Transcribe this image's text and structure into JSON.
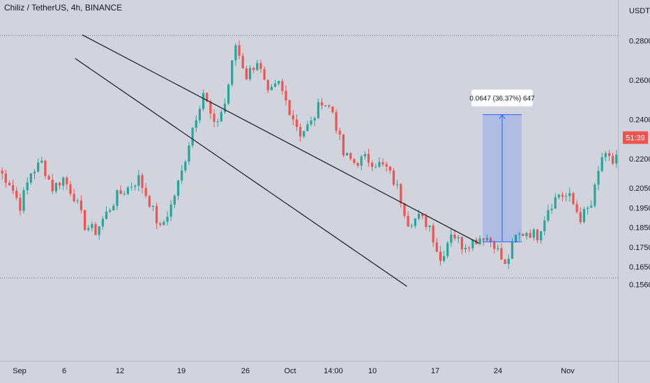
{
  "chart": {
    "title": "Chiliz / TetherUS, 4h, BINANCE",
    "price_unit": "USDT",
    "current_price_label": "51:39",
    "colors": {
      "background": "#d1d4dc",
      "up": "#26a69a",
      "down": "#ef5350",
      "trendline": "#131722",
      "measure_fill": "#2962ff",
      "price_badge": "#ef5350"
    }
  },
  "chart_data": {
    "type": "candlestick",
    "title": "Chiliz / TetherUS, 4h, BINANCE",
    "x_ticks": [
      "Sep",
      "6",
      "12",
      "19",
      "26",
      "Oct",
      "14:00",
      "10",
      "17",
      "24",
      "Nov"
    ],
    "y_ticks": [
      0.28,
      0.26,
      0.24,
      0.22,
      0.205,
      0.195,
      0.185,
      0.175,
      0.165,
      0.156
    ],
    "y_tick_labels": [
      "0.2800",
      "0.2600",
      "0.2400",
      "0.2200",
      "0.2050",
      "0.1950",
      "0.1850",
      "0.1750",
      "0.1650",
      "0.1560"
    ],
    "ylim": [
      0.152,
      0.29
    ],
    "grid": false,
    "horizontal_levels": [
      0.2826,
      0.1593
    ],
    "price_path": [
      [
        0,
        0.214
      ],
      [
        3,
        0.208
      ],
      [
        6,
        0.196
      ],
      [
        9,
        0.213
      ],
      [
        12,
        0.218
      ],
      [
        15,
        0.205
      ],
      [
        18,
        0.21
      ],
      [
        21,
        0.201
      ],
      [
        24,
        0.186
      ],
      [
        27,
        0.183
      ],
      [
        30,
        0.192
      ],
      [
        33,
        0.201
      ],
      [
        36,
        0.205
      ],
      [
        39,
        0.21
      ],
      [
        42,
        0.198
      ],
      [
        45,
        0.184
      ],
      [
        48,
        0.196
      ],
      [
        51,
        0.213
      ],
      [
        54,
        0.236
      ],
      [
        57,
        0.254
      ],
      [
        60,
        0.236
      ],
      [
        63,
        0.248
      ],
      [
        66,
        0.278
      ],
      [
        69,
        0.262
      ],
      [
        72,
        0.27
      ],
      [
        75,
        0.252
      ],
      [
        78,
        0.258
      ],
      [
        81,
        0.245
      ],
      [
        84,
        0.233
      ],
      [
        87,
        0.238
      ],
      [
        90,
        0.25
      ],
      [
        93,
        0.244
      ],
      [
        96,
        0.222
      ],
      [
        99,
        0.218
      ],
      [
        102,
        0.22
      ],
      [
        105,
        0.218
      ],
      [
        108,
        0.215
      ],
      [
        111,
        0.205
      ],
      [
        114,
        0.188
      ],
      [
        117,
        0.19
      ],
      [
        120,
        0.186
      ],
      [
        123,
        0.168
      ],
      [
        126,
        0.183
      ],
      [
        129,
        0.176
      ],
      [
        132,
        0.178
      ],
      [
        135,
        0.181
      ],
      [
        138,
        0.177
      ],
      [
        141,
        0.165
      ],
      [
        144,
        0.18
      ],
      [
        147,
        0.183
      ],
      [
        150,
        0.181
      ],
      [
        153,
        0.195
      ],
      [
        156,
        0.202
      ],
      [
        159,
        0.2
      ],
      [
        162,
        0.19
      ],
      [
        165,
        0.196
      ],
      [
        168,
        0.221
      ],
      [
        171,
        0.218
      ],
      [
        174,
        0.23
      ]
    ],
    "trendlines": [
      {
        "from": [
          0.283,
          20
        ],
        "to": [
          0.177,
          130
        ],
        "label": ""
      },
      {
        "from": [
          0.271,
          18
        ],
        "to": [
          0.155,
          110
        ],
        "label": ""
      }
    ],
    "measurement": {
      "low": 0.1777,
      "high": 0.2424,
      "label": "0.0647 (36.37%) 647"
    },
    "current_price": {
      "value": 0.2307,
      "label": "51:39"
    }
  }
}
